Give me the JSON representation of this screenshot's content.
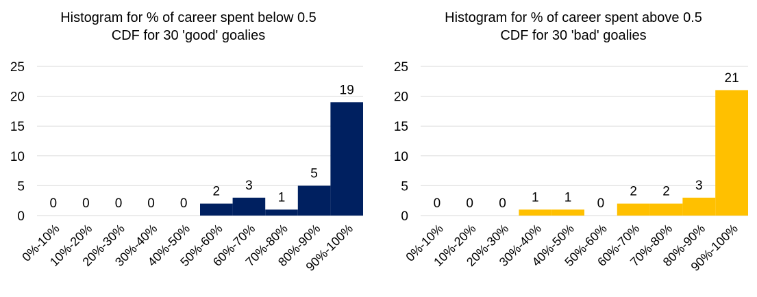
{
  "chart_data": [
    {
      "type": "bar",
      "title": "Histogram for % of career spent below 0.5",
      "subtitle": "CDF for 30 'good' goalies",
      "categories": [
        "0%-10%",
        "10%-20%",
        "20%-30%",
        "30%-40%",
        "40%-50%",
        "50%-60%",
        "60%-70%",
        "70%-80%",
        "80%-90%",
        "90%-100%"
      ],
      "values": [
        0,
        0,
        0,
        0,
        0,
        2,
        3,
        1,
        5,
        19
      ],
      "ylim": [
        0,
        25
      ],
      "yticks": [
        0,
        5,
        10,
        15,
        20,
        25
      ],
      "color": "#002060",
      "grid": true,
      "xlabel": "",
      "ylabel": ""
    },
    {
      "type": "bar",
      "title": "Histogram for % of career spent above 0.5",
      "subtitle": "CDF for 30 'bad' goalies",
      "categories": [
        "0%-10%",
        "10%-20%",
        "20%-30%",
        "30%-40%",
        "40%-50%",
        "50%-60%",
        "60%-70%",
        "70%-80%",
        "80%-90%",
        "90%-100%"
      ],
      "values": [
        0,
        0,
        0,
        1,
        1,
        0,
        2,
        2,
        3,
        21
      ],
      "ylim": [
        0,
        25
      ],
      "yticks": [
        0,
        5,
        10,
        15,
        20,
        25
      ],
      "color": "#FFC000",
      "grid": true,
      "xlabel": "",
      "ylabel": ""
    }
  ]
}
